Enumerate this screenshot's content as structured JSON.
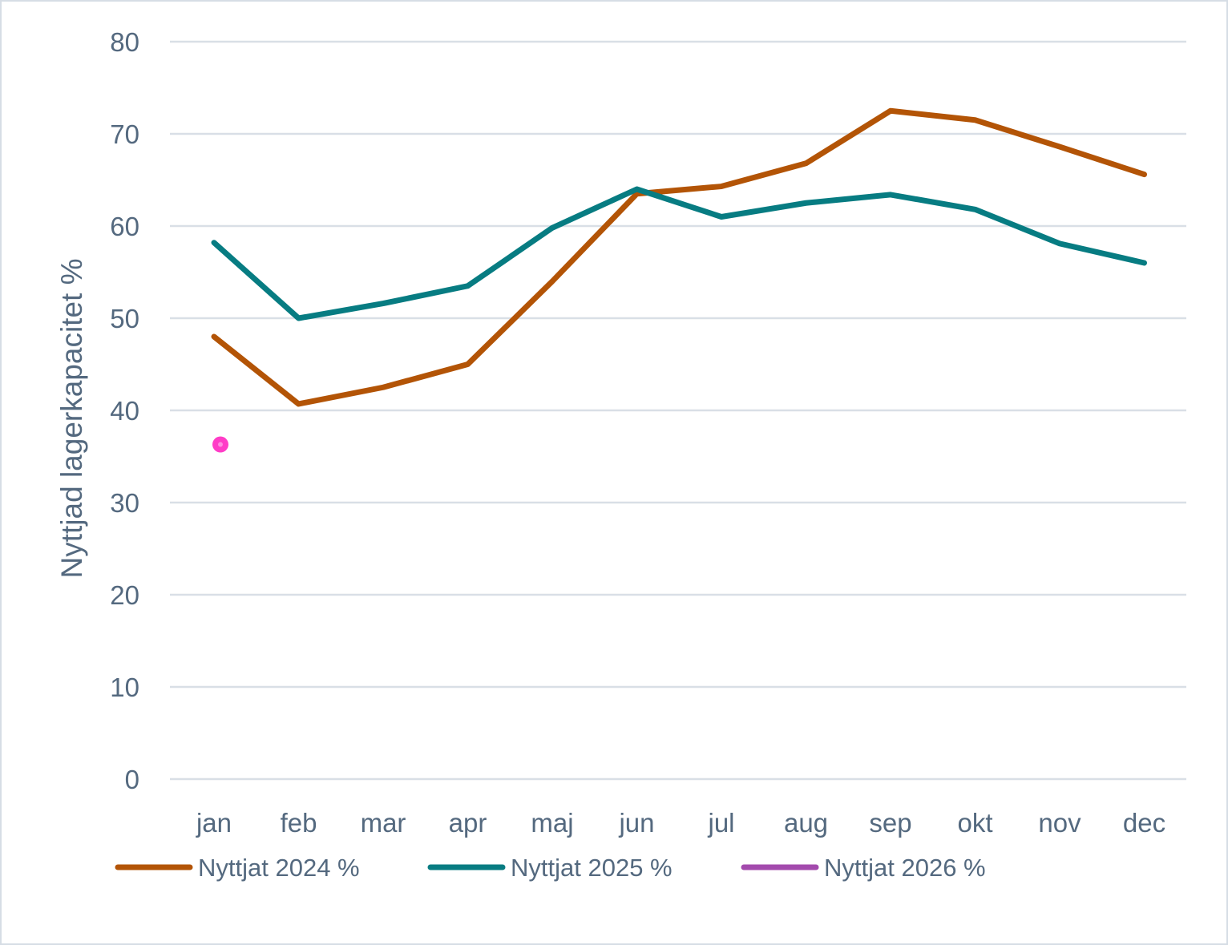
{
  "chart_data": {
    "type": "line",
    "title": "",
    "xlabel": "",
    "ylabel": "Nyttjad lagerkapacitet %",
    "ylim": [
      0,
      80
    ],
    "yticks": [
      0,
      10,
      20,
      30,
      40,
      50,
      60,
      70,
      80
    ],
    "ytick_labels": [
      "0",
      "10",
      "20",
      "30",
      "40",
      "50",
      "60",
      "70",
      "80"
    ],
    "grid": true,
    "legend_position": "bottom",
    "categories": [
      "jan",
      "feb",
      "mar",
      "apr",
      "maj",
      "jun",
      "jul",
      "aug",
      "sep",
      "okt",
      "nov",
      "dec"
    ],
    "series": [
      {
        "name": "Nyttjat 2024 %",
        "color": "#b35406",
        "values": [
          48.0,
          40.7,
          42.5,
          45.0,
          54.0,
          63.5,
          64.3,
          66.8,
          72.5,
          71.5,
          68.6,
          65.6
        ]
      },
      {
        "name": "Nyttjat 2025 %",
        "color": "#077c82",
        "values": [
          58.2,
          50.0,
          51.6,
          53.5,
          59.8,
          64.0,
          61.0,
          62.5,
          63.4,
          61.8,
          58.1,
          56.0
        ]
      },
      {
        "name": "Nyttjat 2026 %",
        "color": "#a34aad",
        "marker_color": "#ff3dc7",
        "values": [
          36.3,
          null,
          null,
          null,
          null,
          null,
          null,
          null,
          null,
          null,
          null,
          null
        ]
      }
    ]
  }
}
